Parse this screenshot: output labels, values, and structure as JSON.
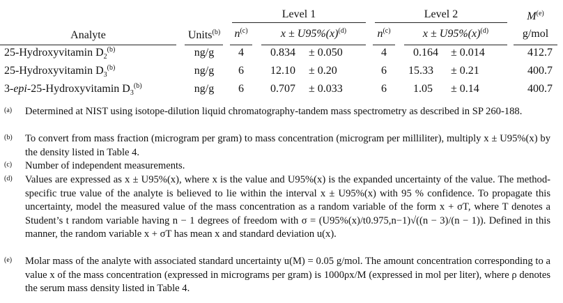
{
  "table": {
    "header_groups": {
      "level1": "Level 1",
      "level2": "Level 2",
      "molar": "M",
      "molar_sup": "(e)",
      "molar_unit": "g/mol"
    },
    "headers": {
      "analyte": "Analyte",
      "units": "Units",
      "units_sup": "(b)",
      "n": "n",
      "n_sup": "(c)",
      "value": "x ± U95%(x)",
      "value_sup": "(d)"
    },
    "rows": [
      {
        "analyte": "25-Hydroxyvitamin D2",
        "sup": "(b)",
        "units": "ng/g",
        "n1": "4",
        "x1": "0.834",
        "u1": "± 0.050",
        "n2": "4",
        "x2": "0.164",
        "u2": "± 0.014",
        "m": "412.7"
      },
      {
        "analyte": "25-Hydroxyvitamin D3",
        "sup": "(b)",
        "units": "ng/g",
        "n1": "6",
        "x1": "12.10",
        "u1": "± 0.20",
        "n2": "6",
        "x2": "15.33",
        "u2": "± 0.21",
        "m": "400.7"
      },
      {
        "analyte": "3-epi-25-Hydroxyvitamin D3",
        "sup": "(b)",
        "units": "ng/g",
        "n1": "6",
        "x1": "0.707",
        "u1": "± 0.033",
        "n2": "6",
        "x2": "1.05",
        "u2": "± 0.14",
        "m": "400.7"
      }
    ]
  },
  "footnotes": [
    {
      "mark": "(a)",
      "text": "Determined at NIST using isotope-dilution liquid chromatography-tandem mass spectrometry as described in SP 260-188."
    },
    {
      "mark": "(b)",
      "text": "To convert from mass fraction (microgram per gram) to mass concentration (microgram per milliliter), multiply x ± U95%(x) by the density listed in Table 4."
    },
    {
      "mark": "(c)",
      "text": "Number of independent measurements."
    },
    {
      "mark": "(d)",
      "text": "Values are expressed as x ± U95%(x), where x is the value and U95%(x) is the expanded uncertainty of the value. The method-specific true value of the analyte is believed to lie within the interval x ± U95%(x) with 95 % confidence. To propagate this uncertainty, model the measured value of the mass concentration as a random variable of the form x + σT, where T denotes a Student’s t random variable having n − 1 degrees of freedom with σ = (U95%(x)/t0.975,n−1)√((n − 3)/(n − 1)). Defined in this manner, the random variable x + σT has mean x and standard deviation u(x)."
    },
    {
      "mark": "(e)",
      "text": "Molar mass of the analyte with associated standard uncertainty u(M) = 0.05 g/mol. The amount concentration corresponding to a value x of the mass concentration (expressed in micrograms per gram) is 1000ρx/M (expressed in mol per liter), where ρ denotes the serum mass density listed in Table 4."
    }
  ]
}
